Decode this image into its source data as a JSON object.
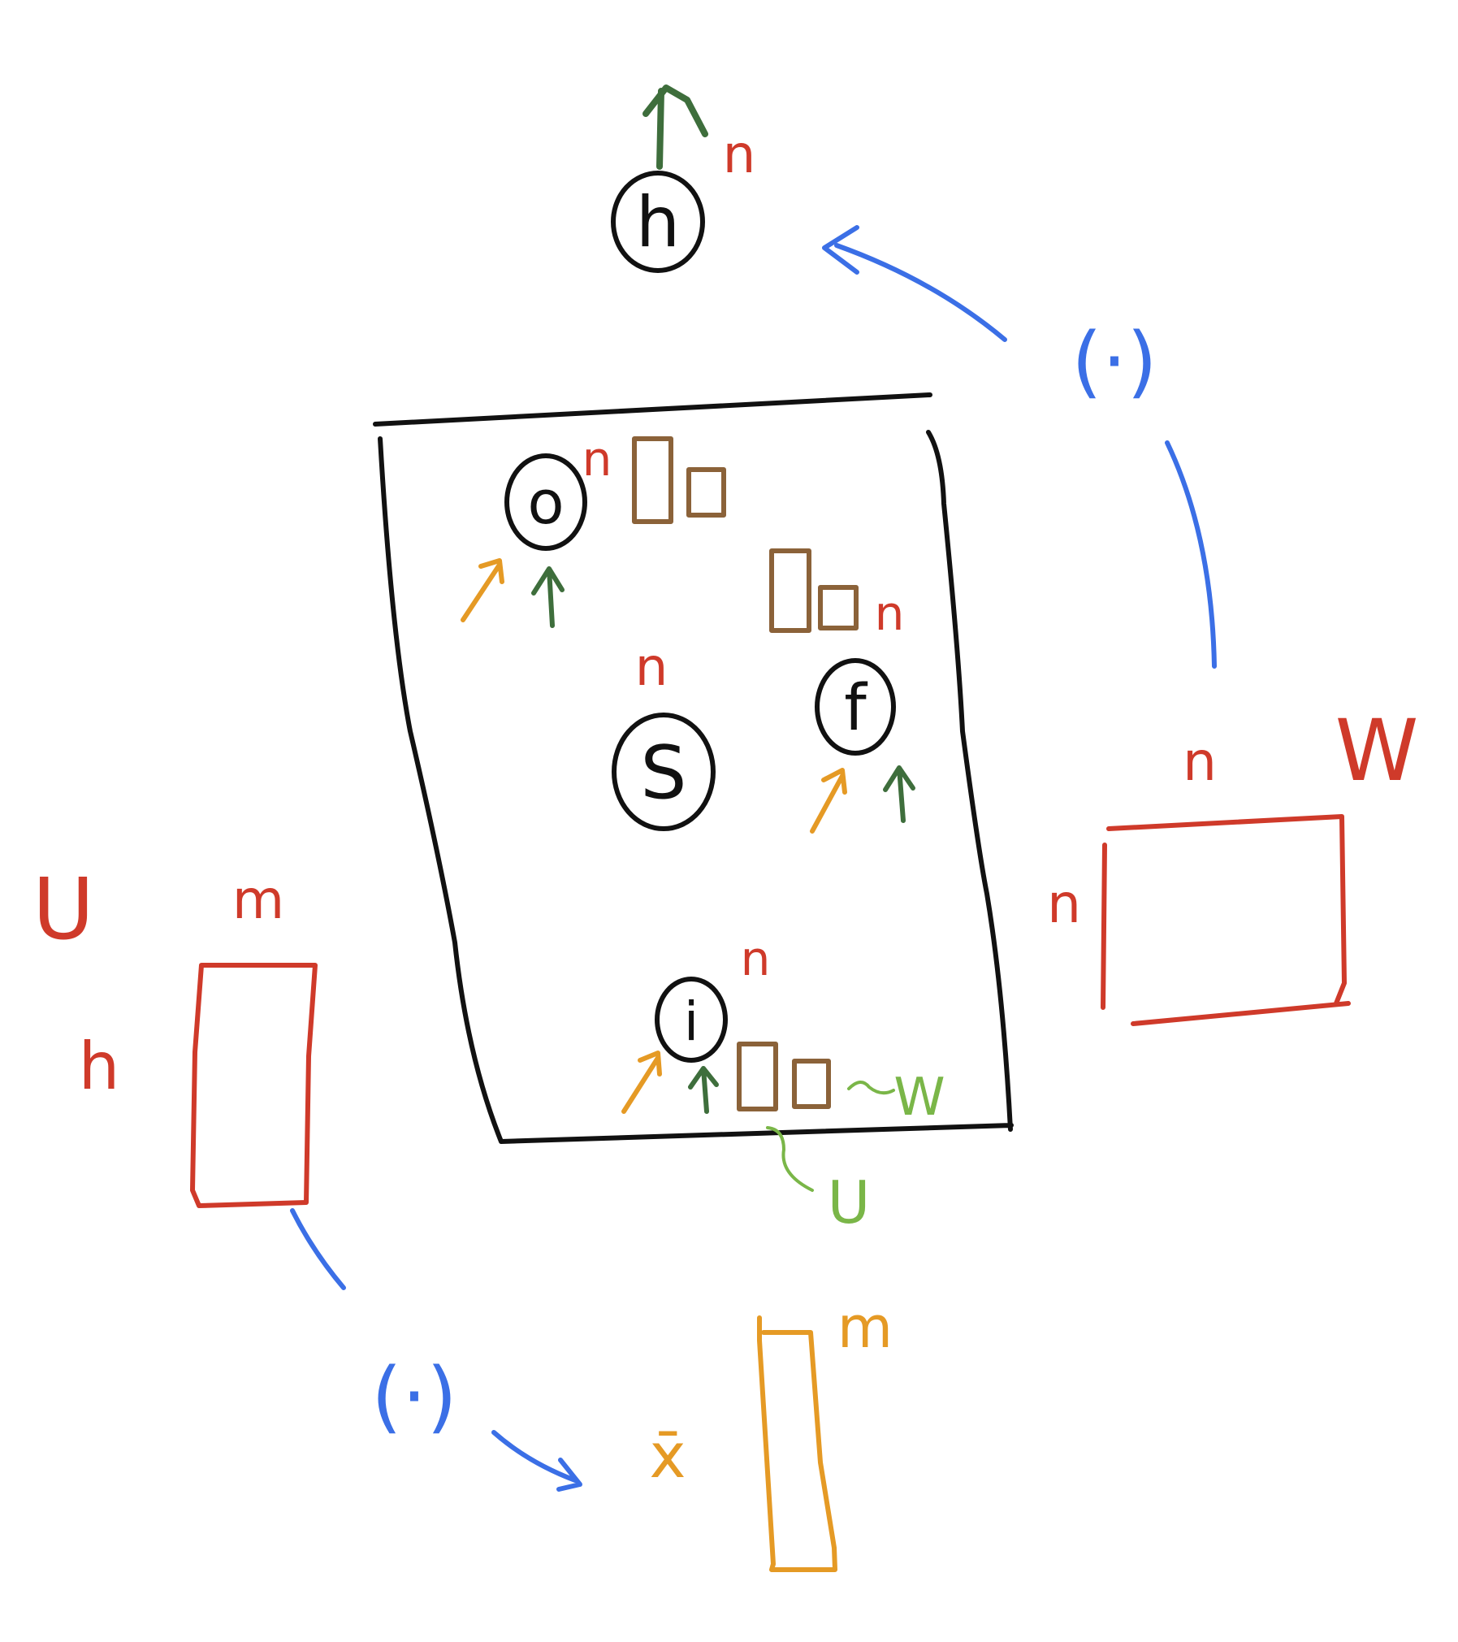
{
  "diagram": {
    "colors": {
      "ink": "#111111",
      "dim": "#cf3a2a",
      "brown": "#8b6239",
      "orange": "#e59a25",
      "dark_green": "#3e6e3c",
      "light_green": "#7ab648",
      "blue": "#3b6fe6"
    },
    "output_node": {
      "label": "h",
      "dim": "n"
    },
    "cell": {
      "gates": [
        {
          "id": "o",
          "label": "o",
          "dim": "n"
        },
        {
          "id": "f",
          "label": "f",
          "dim": "n"
        },
        {
          "id": "s",
          "label": "S",
          "dim": "n"
        },
        {
          "id": "i",
          "label": "i",
          "dim": "n"
        }
      ],
      "weight_labels": {
        "w": "W",
        "u": "U"
      }
    },
    "matrix_w": {
      "name": "W",
      "rows": "n",
      "cols": "n"
    },
    "matrix_u": {
      "name": "U",
      "rows": "h",
      "cols": "m"
    },
    "input": {
      "label": "x̄",
      "dim": "m"
    },
    "ops": {
      "top": "(·)",
      "bottom": "(·)"
    }
  }
}
